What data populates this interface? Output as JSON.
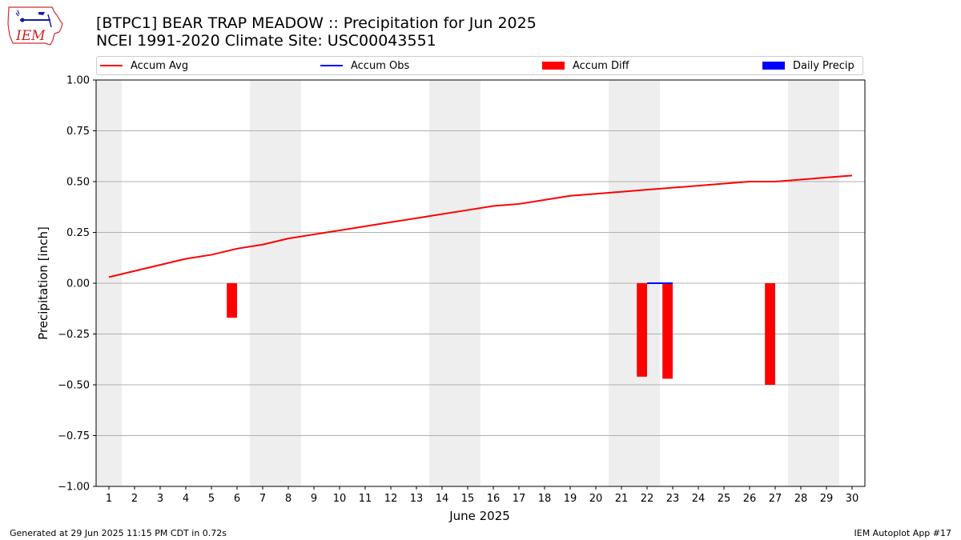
{
  "logo_text": "IEM",
  "title_line1": "[BTPC1] BEAR TRAP MEADOW :: Precipitation for Jun 2025",
  "title_line2": "NCEI 1991-2020 Climate Site: USC00043551",
  "legend": [
    {
      "label": "Accum Avg",
      "kind": "line",
      "color": "#ff0000"
    },
    {
      "label": "Accum Obs",
      "kind": "line",
      "color": "#0000ff"
    },
    {
      "label": "Accum Diff",
      "kind": "patch",
      "color": "#ff0000"
    },
    {
      "label": "Daily Precip",
      "kind": "patch",
      "color": "#0000ff"
    }
  ],
  "footer_left": "Generated at 29 Jun 2025 11:15 PM CDT in 0.72s",
  "footer_right": "IEM Autoplot App #17",
  "colors": {
    "avg": "#ff0000",
    "obs": "#0000ff",
    "diff": "#ff0000",
    "weekend": "#eeeeee",
    "grid": "#b0b0b0"
  },
  "chart_data": {
    "type": "line",
    "xlabel": "June 2025",
    "ylabel": "Precipitation [inch]",
    "ylim": [
      -1.0,
      1.0
    ],
    "xlim": [
      0.5,
      30.5
    ],
    "yticks": [
      1.0,
      0.75,
      0.5,
      0.25,
      0.0,
      -0.25,
      -0.5,
      -0.75,
      -1.0
    ],
    "ytick_labels": [
      "1.00",
      "0.75",
      "0.50",
      "0.25",
      "0.00",
      "−0.25",
      "−0.50",
      "−0.75",
      "−1.00"
    ],
    "x": [
      1,
      2,
      3,
      4,
      5,
      6,
      7,
      8,
      9,
      10,
      11,
      12,
      13,
      14,
      15,
      16,
      17,
      18,
      19,
      20,
      21,
      22,
      23,
      24,
      25,
      26,
      27,
      28,
      29,
      30
    ],
    "grid": "horizontal",
    "shaded_day_ranges": [
      [
        0.5,
        1.5
      ],
      [
        6.5,
        8.5
      ],
      [
        13.5,
        15.5
      ],
      [
        20.5,
        22.5
      ],
      [
        27.5,
        29.5
      ]
    ],
    "series": [
      {
        "name": "Accum Avg",
        "type": "line",
        "values": [
          0.03,
          0.06,
          0.09,
          0.12,
          0.14,
          0.17,
          0.19,
          0.22,
          0.24,
          0.26,
          0.28,
          0.3,
          0.32,
          0.34,
          0.36,
          0.38,
          0.39,
          0.41,
          0.43,
          0.44,
          0.45,
          0.46,
          0.47,
          0.48,
          0.49,
          0.5,
          0.5,
          0.51,
          0.52,
          0.53
        ]
      },
      {
        "name": "Accum Obs",
        "type": "line",
        "x": [
          22,
          23
        ],
        "values": [
          0.0,
          0.0
        ]
      },
      {
        "name": "Accum Diff",
        "type": "bar",
        "x": [
          6,
          22,
          23,
          27
        ],
        "values": [
          -0.17,
          -0.46,
          -0.47,
          -0.5
        ]
      },
      {
        "name": "Daily Precip",
        "type": "bar",
        "x": [],
        "values": []
      }
    ]
  }
}
